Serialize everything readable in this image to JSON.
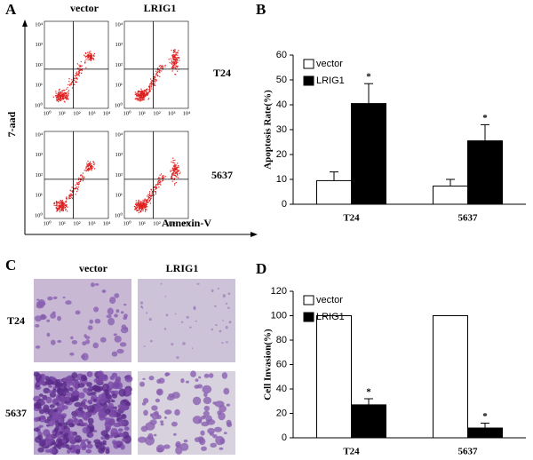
{
  "panel_labels": [
    "A",
    "B",
    "C",
    "D"
  ],
  "flow_cytometry": {
    "columns": [
      "vector",
      "LRIG1"
    ],
    "rows": [
      "T24",
      "5637"
    ],
    "y_label": "7-aad",
    "x_label": "Annexin-V",
    "axis_ticks": [
      "10⁰",
      "10¹",
      "10²",
      "10³",
      "10⁴"
    ]
  },
  "invasion_images": {
    "columns": [
      "vector",
      "LRIG1"
    ],
    "rows": [
      "T24",
      "5637"
    ]
  },
  "chart_data": [
    {
      "type": "bar",
      "y_label": "Apoptosis Rate(%)",
      "categories": [
        "T24",
        "5637"
      ],
      "series": [
        {
          "name": "vector",
          "color": "#ffffff",
          "values": [
            9.5,
            7.3
          ],
          "errors": [
            3.5,
            2.7
          ]
        },
        {
          "name": "LRIG1",
          "color": "#000000",
          "values": [
            40.5,
            25.5
          ],
          "errors": [
            8,
            6.5
          ],
          "annotations": [
            "*",
            "*"
          ]
        }
      ],
      "ylim": [
        0,
        60
      ],
      "yticks": [
        0,
        10,
        20,
        30,
        40,
        50,
        60
      ],
      "legend": "upper-left"
    },
    {
      "type": "bar",
      "y_label": "Cell Invasion(%)",
      "categories": [
        "T24",
        "5637"
      ],
      "series": [
        {
          "name": "vector",
          "color": "#ffffff",
          "values": [
            100,
            100
          ]
        },
        {
          "name": "LRIG1",
          "color": "#000000",
          "values": [
            27,
            8
          ],
          "errors": [
            5,
            4
          ],
          "annotations": [
            "*",
            "*"
          ]
        }
      ],
      "ylim": [
        0,
        120
      ],
      "yticks": [
        0,
        20,
        40,
        60,
        80,
        100,
        120
      ],
      "legend": "upper-left"
    }
  ]
}
